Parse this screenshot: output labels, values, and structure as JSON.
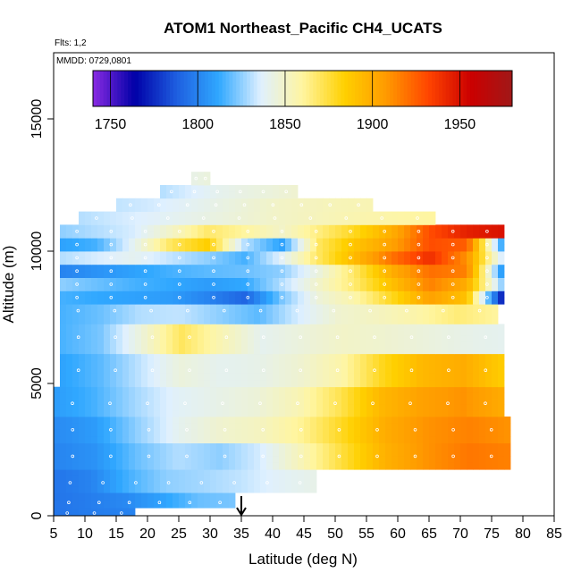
{
  "chart_data": {
    "type": "heatmap",
    "title": "ATOM1 Northeast_Pacific CH4_UCATS",
    "flights_note": "Flts: 1,2",
    "date_note": "MMDD: 0729,0801",
    "xlabel": "Latitude (deg N)",
    "ylabel": "Altitude (m)",
    "xlim": [
      5,
      85
    ],
    "ylim": [
      0,
      17500
    ],
    "x_ticks": [
      "5",
      "10",
      "15",
      "20",
      "25",
      "30",
      "35",
      "40",
      "45",
      "50",
      "55",
      "60",
      "65",
      "70",
      "75",
      "80",
      "85"
    ],
    "y_ticks": [
      "0",
      "5000",
      "10000",
      "15000"
    ],
    "colorbar": {
      "range": [
        1740,
        1980
      ],
      "ticks": [
        "1750",
        "1800",
        "1850",
        "1900",
        "1950"
      ],
      "colors": [
        "#8a2be2",
        "#0000a8",
        "#1e5fe0",
        "#30a8ff",
        "#dff0ff",
        "#fff5a0",
        "#ffd000",
        "#ff9a00",
        "#ff4500",
        "#cc0000",
        "#a01818"
      ]
    },
    "arrow_latitude": 35,
    "grid": false,
    "sample_bands": [
      {
        "alt": 12750,
        "lat_min": 27,
        "lat_max": 30,
        "values": [
          1842,
          1845
        ]
      },
      {
        "alt": 12250,
        "lat_min": 22,
        "lat_max": 44,
        "values": [
          1830,
          1835,
          1840,
          1843,
          1845,
          1848
        ]
      },
      {
        "alt": 11750,
        "lat_min": 15,
        "lat_max": 56,
        "values": [
          1832,
          1834,
          1838,
          1842,
          1846,
          1850,
          1852,
          1854,
          1855
        ]
      },
      {
        "alt": 11250,
        "lat_min": 9,
        "lat_max": 66,
        "values": [
          1830,
          1834,
          1838,
          1842,
          1846,
          1850,
          1853,
          1856,
          1858,
          1860
        ]
      },
      {
        "alt": 10750,
        "lat_min": 6,
        "lat_max": 77,
        "values": [
          1825,
          1830,
          1835,
          1850,
          1868,
          1860,
          1850,
          1865,
          1880,
          1900,
          1930,
          1945,
          1950
        ]
      },
      {
        "alt": 10250,
        "lat_min": 6,
        "lat_max": 77,
        "values": [
          1810,
          1815,
          1840,
          1870,
          1885,
          1830,
          1810,
          1870,
          1890,
          1905,
          1930,
          1925,
          1805
        ]
      },
      {
        "alt": 9750,
        "lat_min": 6,
        "lat_max": 77,
        "values": [
          1830,
          1835,
          1840,
          1832,
          1825,
          1815,
          1838,
          1870,
          1895,
          1920,
          1940,
          1910,
          1830
        ]
      },
      {
        "alt": 9250,
        "lat_min": 6,
        "lat_max": 77,
        "values": [
          1800,
          1805,
          1810,
          1815,
          1818,
          1820,
          1825,
          1845,
          1870,
          1900,
          1920,
          1915,
          1800
        ]
      },
      {
        "alt": 8750,
        "lat_min": 6,
        "lat_max": 77,
        "values": [
          1825,
          1820,
          1815,
          1812,
          1808,
          1812,
          1830,
          1850,
          1868,
          1892,
          1915,
          1900,
          1820
        ]
      },
      {
        "alt": 8250,
        "lat_min": 6,
        "lat_max": 77,
        "values": [
          1815,
          1812,
          1810,
          1808,
          1800,
          1790,
          1822,
          1846,
          1858,
          1880,
          1905,
          1890,
          1765
        ]
      },
      {
        "alt": 7750,
        "lat_min": 6,
        "lat_max": 76,
        "values": [
          1815,
          1820,
          1830,
          1832,
          1825,
          1818,
          1835,
          1848,
          1852,
          1858,
          1866,
          1860
        ]
      },
      {
        "alt": 6750,
        "lat_min": 6,
        "lat_max": 77,
        "values": [
          1815,
          1822,
          1845,
          1870,
          1855,
          1840,
          1845,
          1850,
          1848,
          1845,
          1842,
          1840
        ]
      },
      {
        "alt": 5500,
        "lat_min": 6,
        "lat_max": 77,
        "values": [
          1810,
          1818,
          1832,
          1845,
          1840,
          1842,
          1848,
          1858,
          1880,
          1895,
          1900,
          1885
        ]
      },
      {
        "alt": 4250,
        "lat_min": 5,
        "lat_max": 77,
        "values": [
          1808,
          1815,
          1828,
          1838,
          1842,
          1846,
          1855,
          1872,
          1895,
          1905,
          1910,
          1900
        ]
      },
      {
        "alt": 3250,
        "lat_min": 5,
        "lat_max": 78,
        "values": [
          1802,
          1808,
          1825,
          1840,
          1848,
          1852,
          1862,
          1880,
          1900,
          1910,
          1915,
          1910
        ]
      },
      {
        "alt": 2250,
        "lat_min": 5,
        "lat_max": 78,
        "values": [
          1800,
          1805,
          1820,
          1830,
          1825,
          1835,
          1855,
          1876,
          1898,
          1910,
          1918,
          1915
        ]
      },
      {
        "alt": 1250,
        "lat_min": 5,
        "lat_max": 47,
        "values": [
          1795,
          1800,
          1815,
          1825,
          1828,
          1832,
          1838,
          1842
        ]
      },
      {
        "alt": 500,
        "lat_min": 5,
        "lat_max": 34,
        "values": [
          1795,
          1798,
          1802,
          1810,
          1820,
          1822
        ]
      },
      {
        "alt": 100,
        "lat_min": 5,
        "lat_max": 18,
        "values": [
          1795,
          1798,
          1800
        ]
      }
    ]
  }
}
